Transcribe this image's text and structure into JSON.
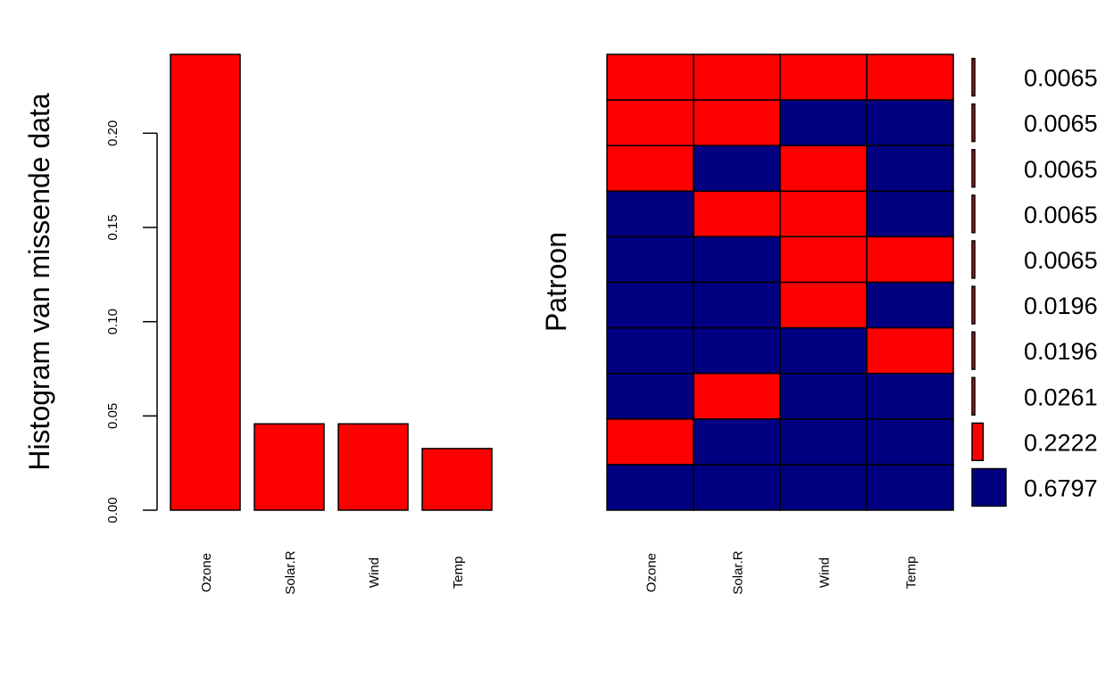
{
  "colors": {
    "missing": "#FF0000",
    "observed": "#000080",
    "axis": "#000000"
  },
  "chart_data": [
    {
      "type": "bar",
      "ylabel": "Histogram van missende data",
      "categories": [
        "Ozone",
        "Solar.R",
        "Wind",
        "Temp"
      ],
      "values": [
        0.2418,
        0.0458,
        0.0458,
        0.0327
      ],
      "ylim": [
        0,
        0.2418
      ],
      "yticks": [
        0.0,
        0.05,
        0.1,
        0.15,
        0.2
      ],
      "ytick_labels": [
        "0.00",
        "0.05",
        "0.10",
        "0.15",
        "0.20"
      ],
      "grid": false,
      "legend": "none"
    },
    {
      "type": "heatmap",
      "ylabel": "Patroon",
      "columns": [
        "Ozone",
        "Solar.R",
        "Wind",
        "Temp"
      ],
      "rows": [
        {
          "pattern": [
            1,
            1,
            1,
            1
          ],
          "proportion": 0.0065,
          "label": "0.0065"
        },
        {
          "pattern": [
            1,
            1,
            0,
            0
          ],
          "proportion": 0.0065,
          "label": "0.0065"
        },
        {
          "pattern": [
            1,
            0,
            1,
            0
          ],
          "proportion": 0.0065,
          "label": "0.0065"
        },
        {
          "pattern": [
            0,
            1,
            1,
            0
          ],
          "proportion": 0.0065,
          "label": "0.0065"
        },
        {
          "pattern": [
            0,
            0,
            1,
            1
          ],
          "proportion": 0.0065,
          "label": "0.0065"
        },
        {
          "pattern": [
            0,
            0,
            1,
            0
          ],
          "proportion": 0.0196,
          "label": "0.0196"
        },
        {
          "pattern": [
            0,
            0,
            0,
            1
          ],
          "proportion": 0.0196,
          "label": "0.0196"
        },
        {
          "pattern": [
            0,
            1,
            0,
            0
          ],
          "proportion": 0.0261,
          "label": "0.0261"
        },
        {
          "pattern": [
            1,
            0,
            0,
            0
          ],
          "proportion": 0.2222,
          "label": "0.2222"
        },
        {
          "pattern": [
            0,
            0,
            0,
            0
          ],
          "proportion": 0.6797,
          "label": "0.6797"
        }
      ],
      "legend": "none"
    }
  ]
}
